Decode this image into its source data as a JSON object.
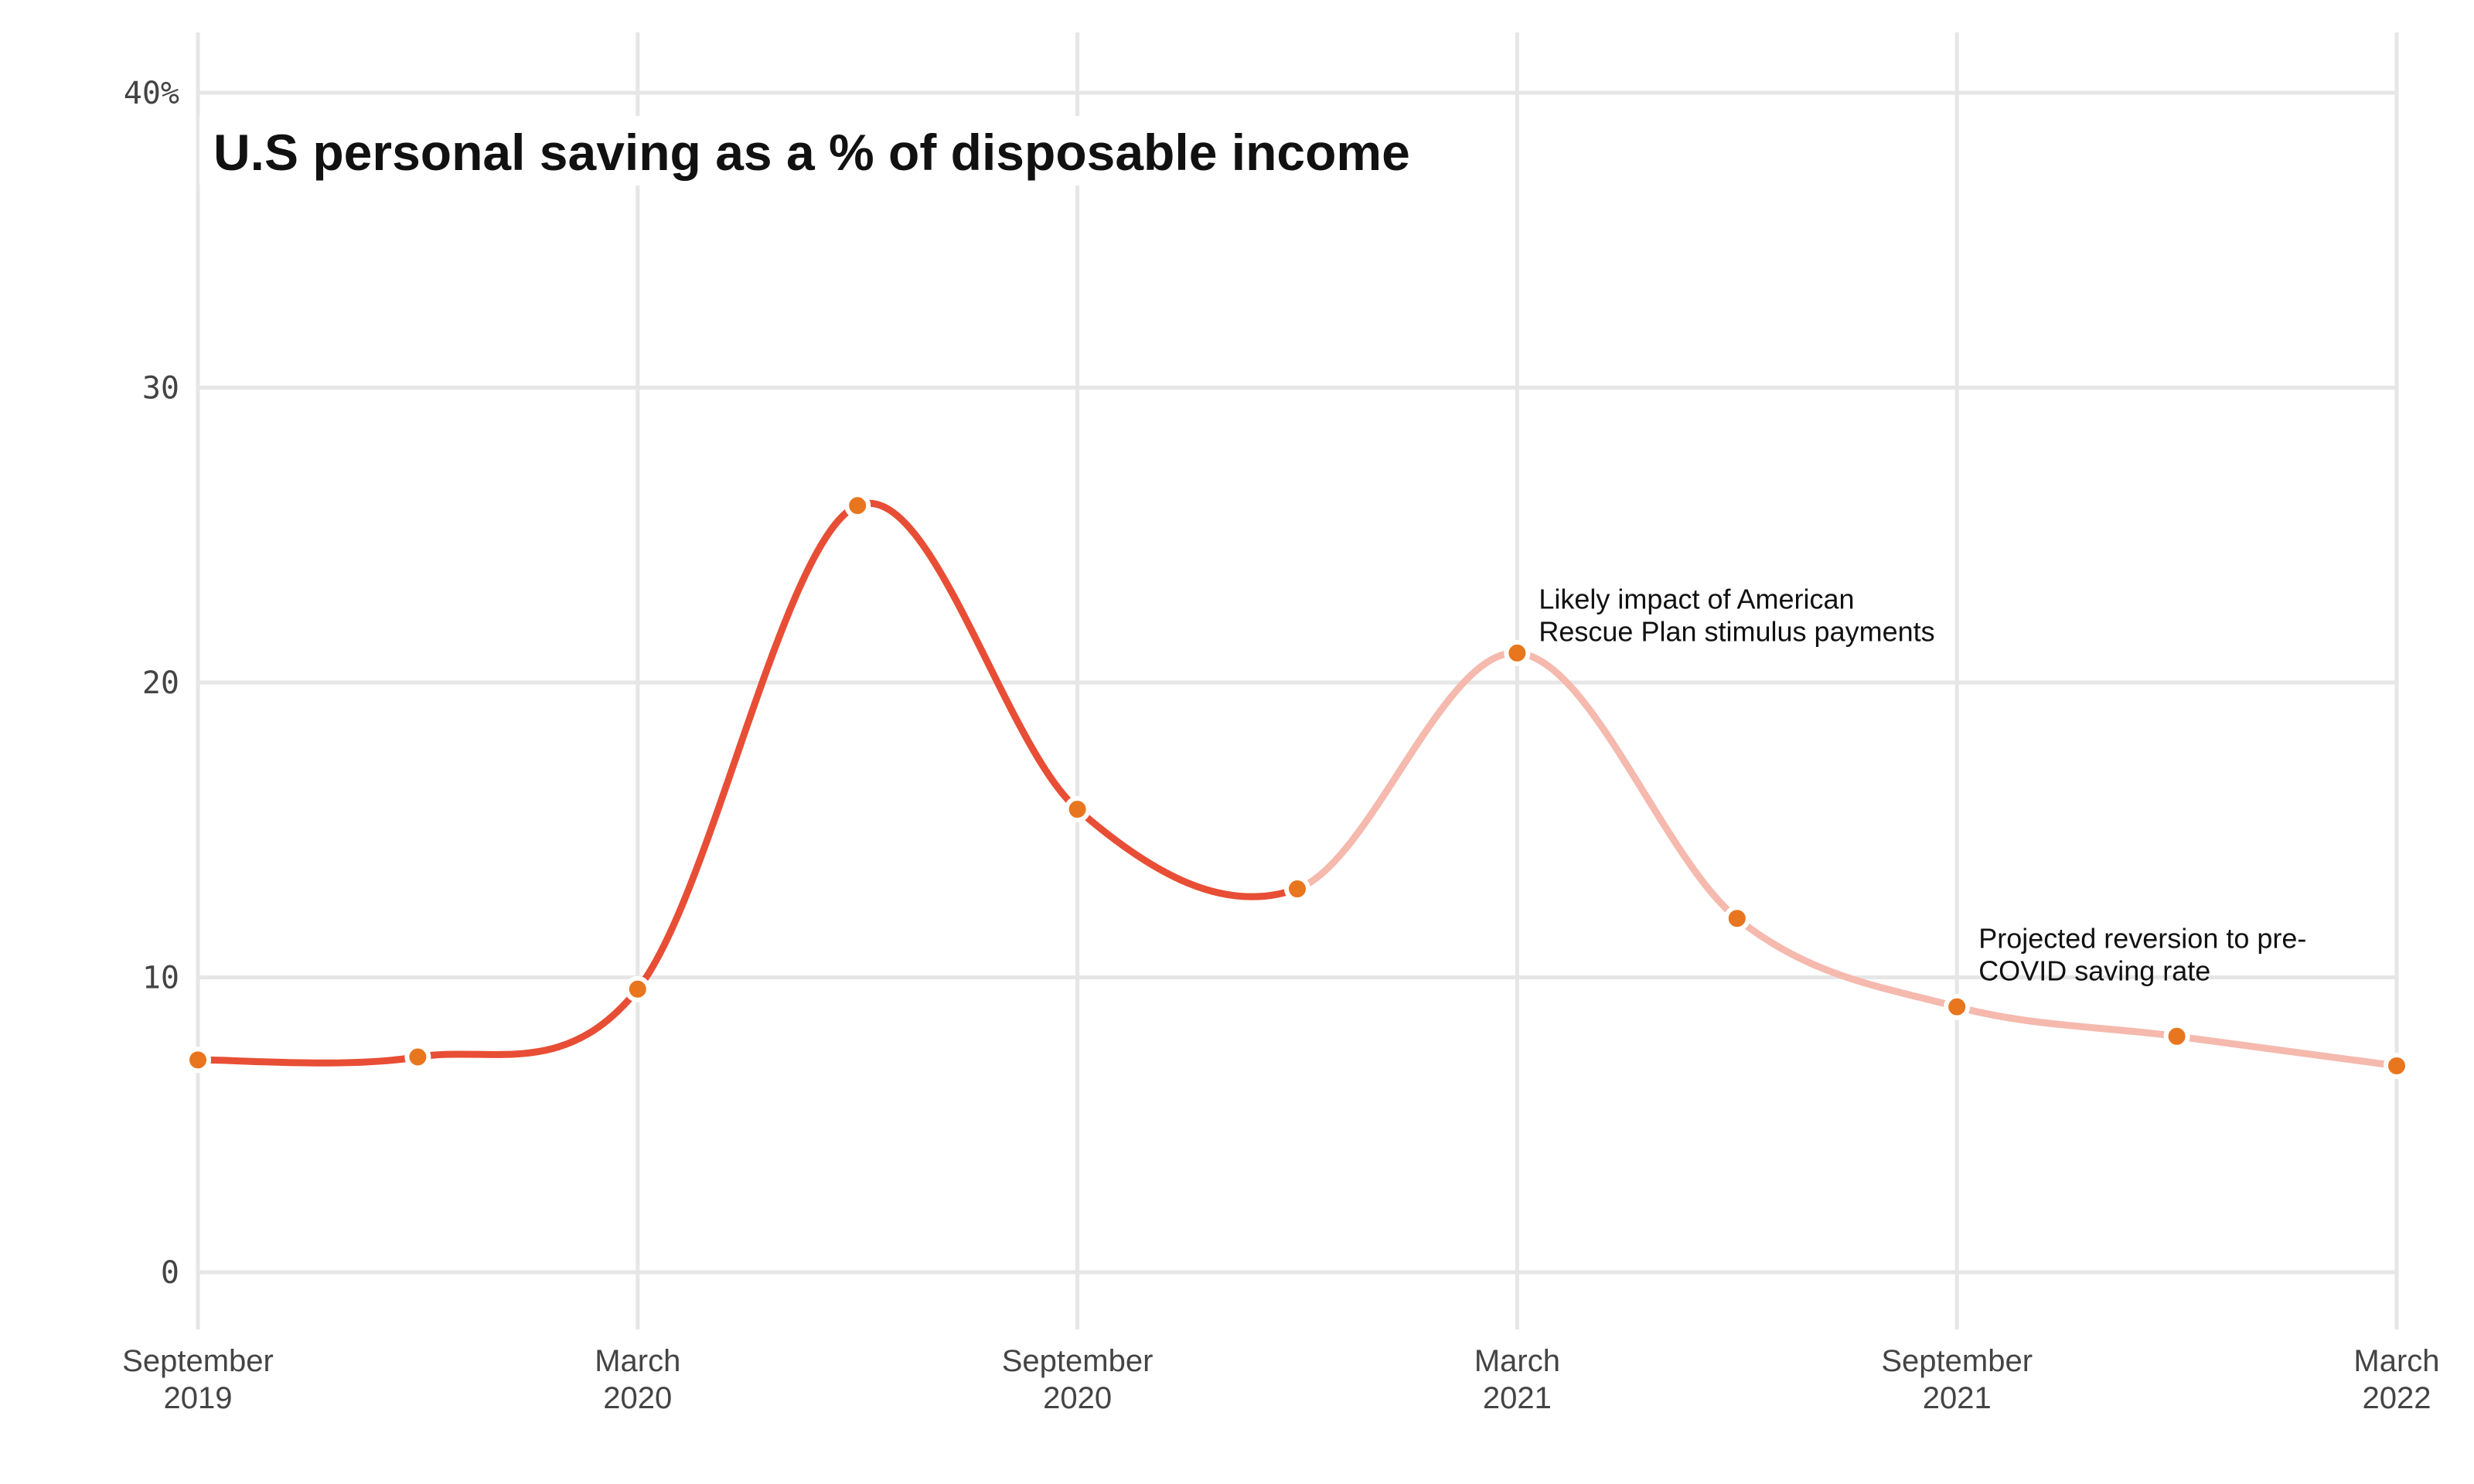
{
  "chart_data": {
    "type": "line",
    "title": "U.S personal saving as a % of disposable income",
    "xlabel": "",
    "ylabel": "",
    "x": [
      "2019-09",
      "2019-12",
      "2020-03",
      "2020-06",
      "2020-09",
      "2020-12",
      "2021-03",
      "2021-06",
      "2021-09",
      "2021-12",
      "2022-03"
    ],
    "series": [
      {
        "values": [
          7.2,
          7.3,
          9.6,
          26.0,
          15.7,
          13.0,
          21.0,
          12.0,
          9.0,
          8.0,
          7.0
        ],
        "actual_through_index": 5
      }
    ],
    "x_ticks": [
      {
        "month": "September",
        "year": "2019",
        "x": "2019-09"
      },
      {
        "month": "March",
        "year": "2020",
        "x": "2020-03"
      },
      {
        "month": "September",
        "year": "2020",
        "x": "2020-09"
      },
      {
        "month": "March",
        "year": "2021",
        "x": "2021-03"
      },
      {
        "month": "September",
        "year": "2021",
        "x": "2021-09"
      },
      {
        "month": "March",
        "year": "2022",
        "x": "2022-03"
      }
    ],
    "y_ticks": [
      {
        "value": 0,
        "label": "0"
      },
      {
        "value": 10,
        "label": "10"
      },
      {
        "value": 20,
        "label": "20"
      },
      {
        "value": 30,
        "label": "30"
      },
      {
        "value": 40,
        "label": "40%"
      }
    ],
    "ylim": [
      0,
      40
    ],
    "grid": true,
    "legend": "none",
    "annotations": [
      {
        "lines": [
          "Likely impact of American",
          "Rescue Plan stimulus payments"
        ],
        "x": "2021-03",
        "y": 22.5
      },
      {
        "lines": [
          "Projected reversion to pre-",
          "COVID saving rate"
        ],
        "x": "2021-09",
        "y": 11.0
      }
    ],
    "colors": {
      "actual_line": "#e84e35",
      "projected_line": "#f5b9ae",
      "point": "#e8761e",
      "grid": "#e6e6e6"
    }
  }
}
